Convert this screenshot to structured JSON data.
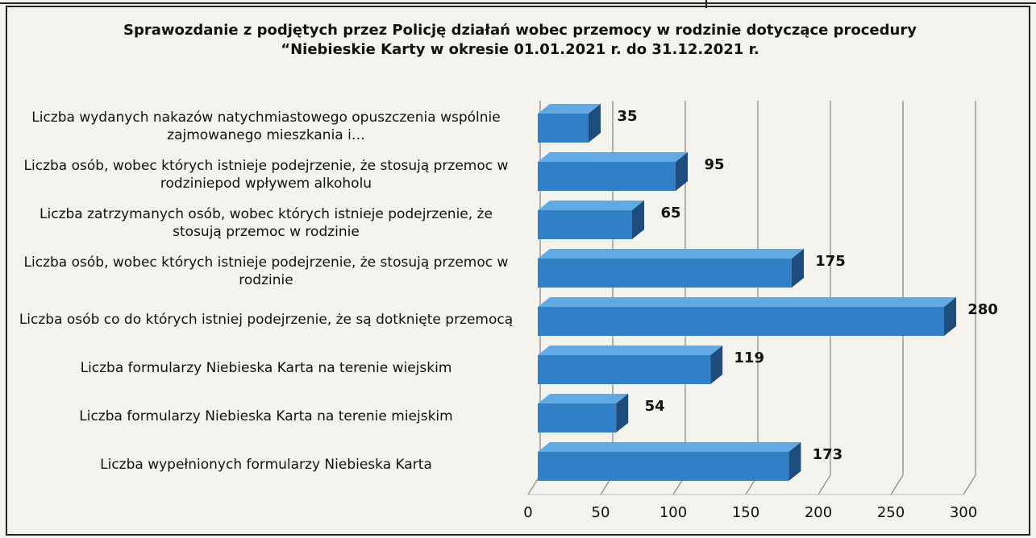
{
  "chart_data": {
    "type": "bar",
    "orientation": "horizontal",
    "title": "Sprawozdanie z podjętych przez Policję działań wobec przemocy w rodzinie dotyczące procedury “Niebieskie Karty w okresie 01.01.2021 r. do 31.12.2021 r.",
    "categories": [
      "Liczba wydanych nakazów natychmiastowego opuszczenia wspólnie zajmowanego mieszkania i…",
      "Liczba osób, wobec których istnieje podejrzenie, że stosują przemoc w rodziniepod wpływem alkoholu",
      "Liczba zatrzymanych osób, wobec których istnieje podejrzenie, że stosują przemoc w rodzinie",
      "Liczba osób, wobec których istnieje podejrzenie, że stosują przemoc w rodzinie",
      "Liczba osób co do których istniej podejrzenie, że są dotknięte przemocą",
      "Liczba formularzy Niebieska Karta na terenie wiejskim",
      "Liczba formularzy Niebieska Karta na terenie miejskim",
      "Liczba wypełnionych formularzy Niebieska Karta"
    ],
    "values": [
      35,
      95,
      65,
      175,
      280,
      119,
      54,
      173
    ],
    "color": "#2f80c6",
    "xlim": [
      0,
      300
    ],
    "xticks": [
      0,
      50,
      100,
      150,
      200,
      250,
      300
    ],
    "grid": true
  }
}
